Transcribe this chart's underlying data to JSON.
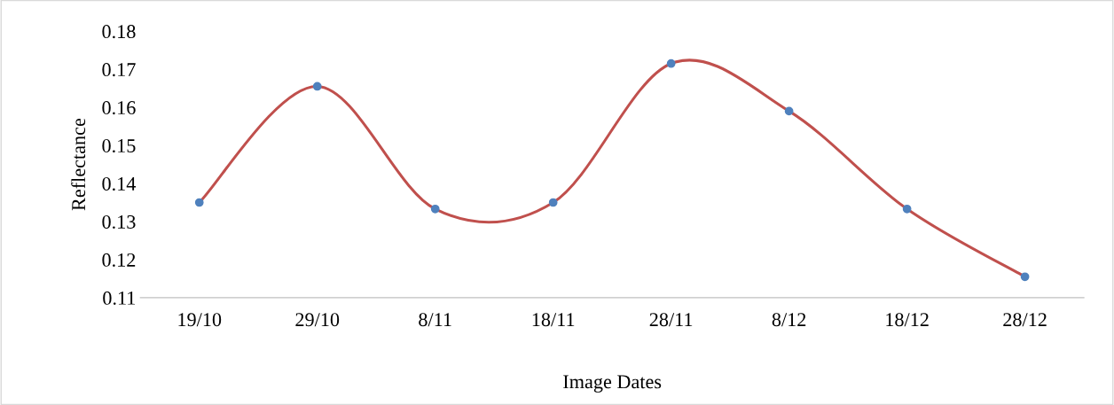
{
  "chart_data": {
    "type": "line",
    "xlabel": "Image Dates",
    "ylabel": "Reflectance",
    "categories": [
      "19/10",
      "29/10",
      "8/11",
      "18/11",
      "28/11",
      "8/12",
      "18/12",
      "28/12"
    ],
    "series": [
      {
        "color": "#c0504d",
        "colors": [
          "#4f81bd",
          "#4f81bd",
          "#4f81bd",
          "#4f81bd",
          "#4f81bd",
          "#4f81bd",
          "#4f81bd",
          "#4f81bd"
        ],
        "values": [
          0.135,
          0.1655,
          0.1333,
          0.135,
          0.1715,
          0.159,
          0.1333,
          0.1155
        ]
      }
    ],
    "ylim": [
      0.11,
      0.18
    ],
    "yticks": [
      0.11,
      0.12,
      0.13,
      0.14,
      0.15,
      0.16,
      0.17,
      0.18
    ],
    "marker": "circle",
    "line_style": "solid",
    "grid": false
  }
}
